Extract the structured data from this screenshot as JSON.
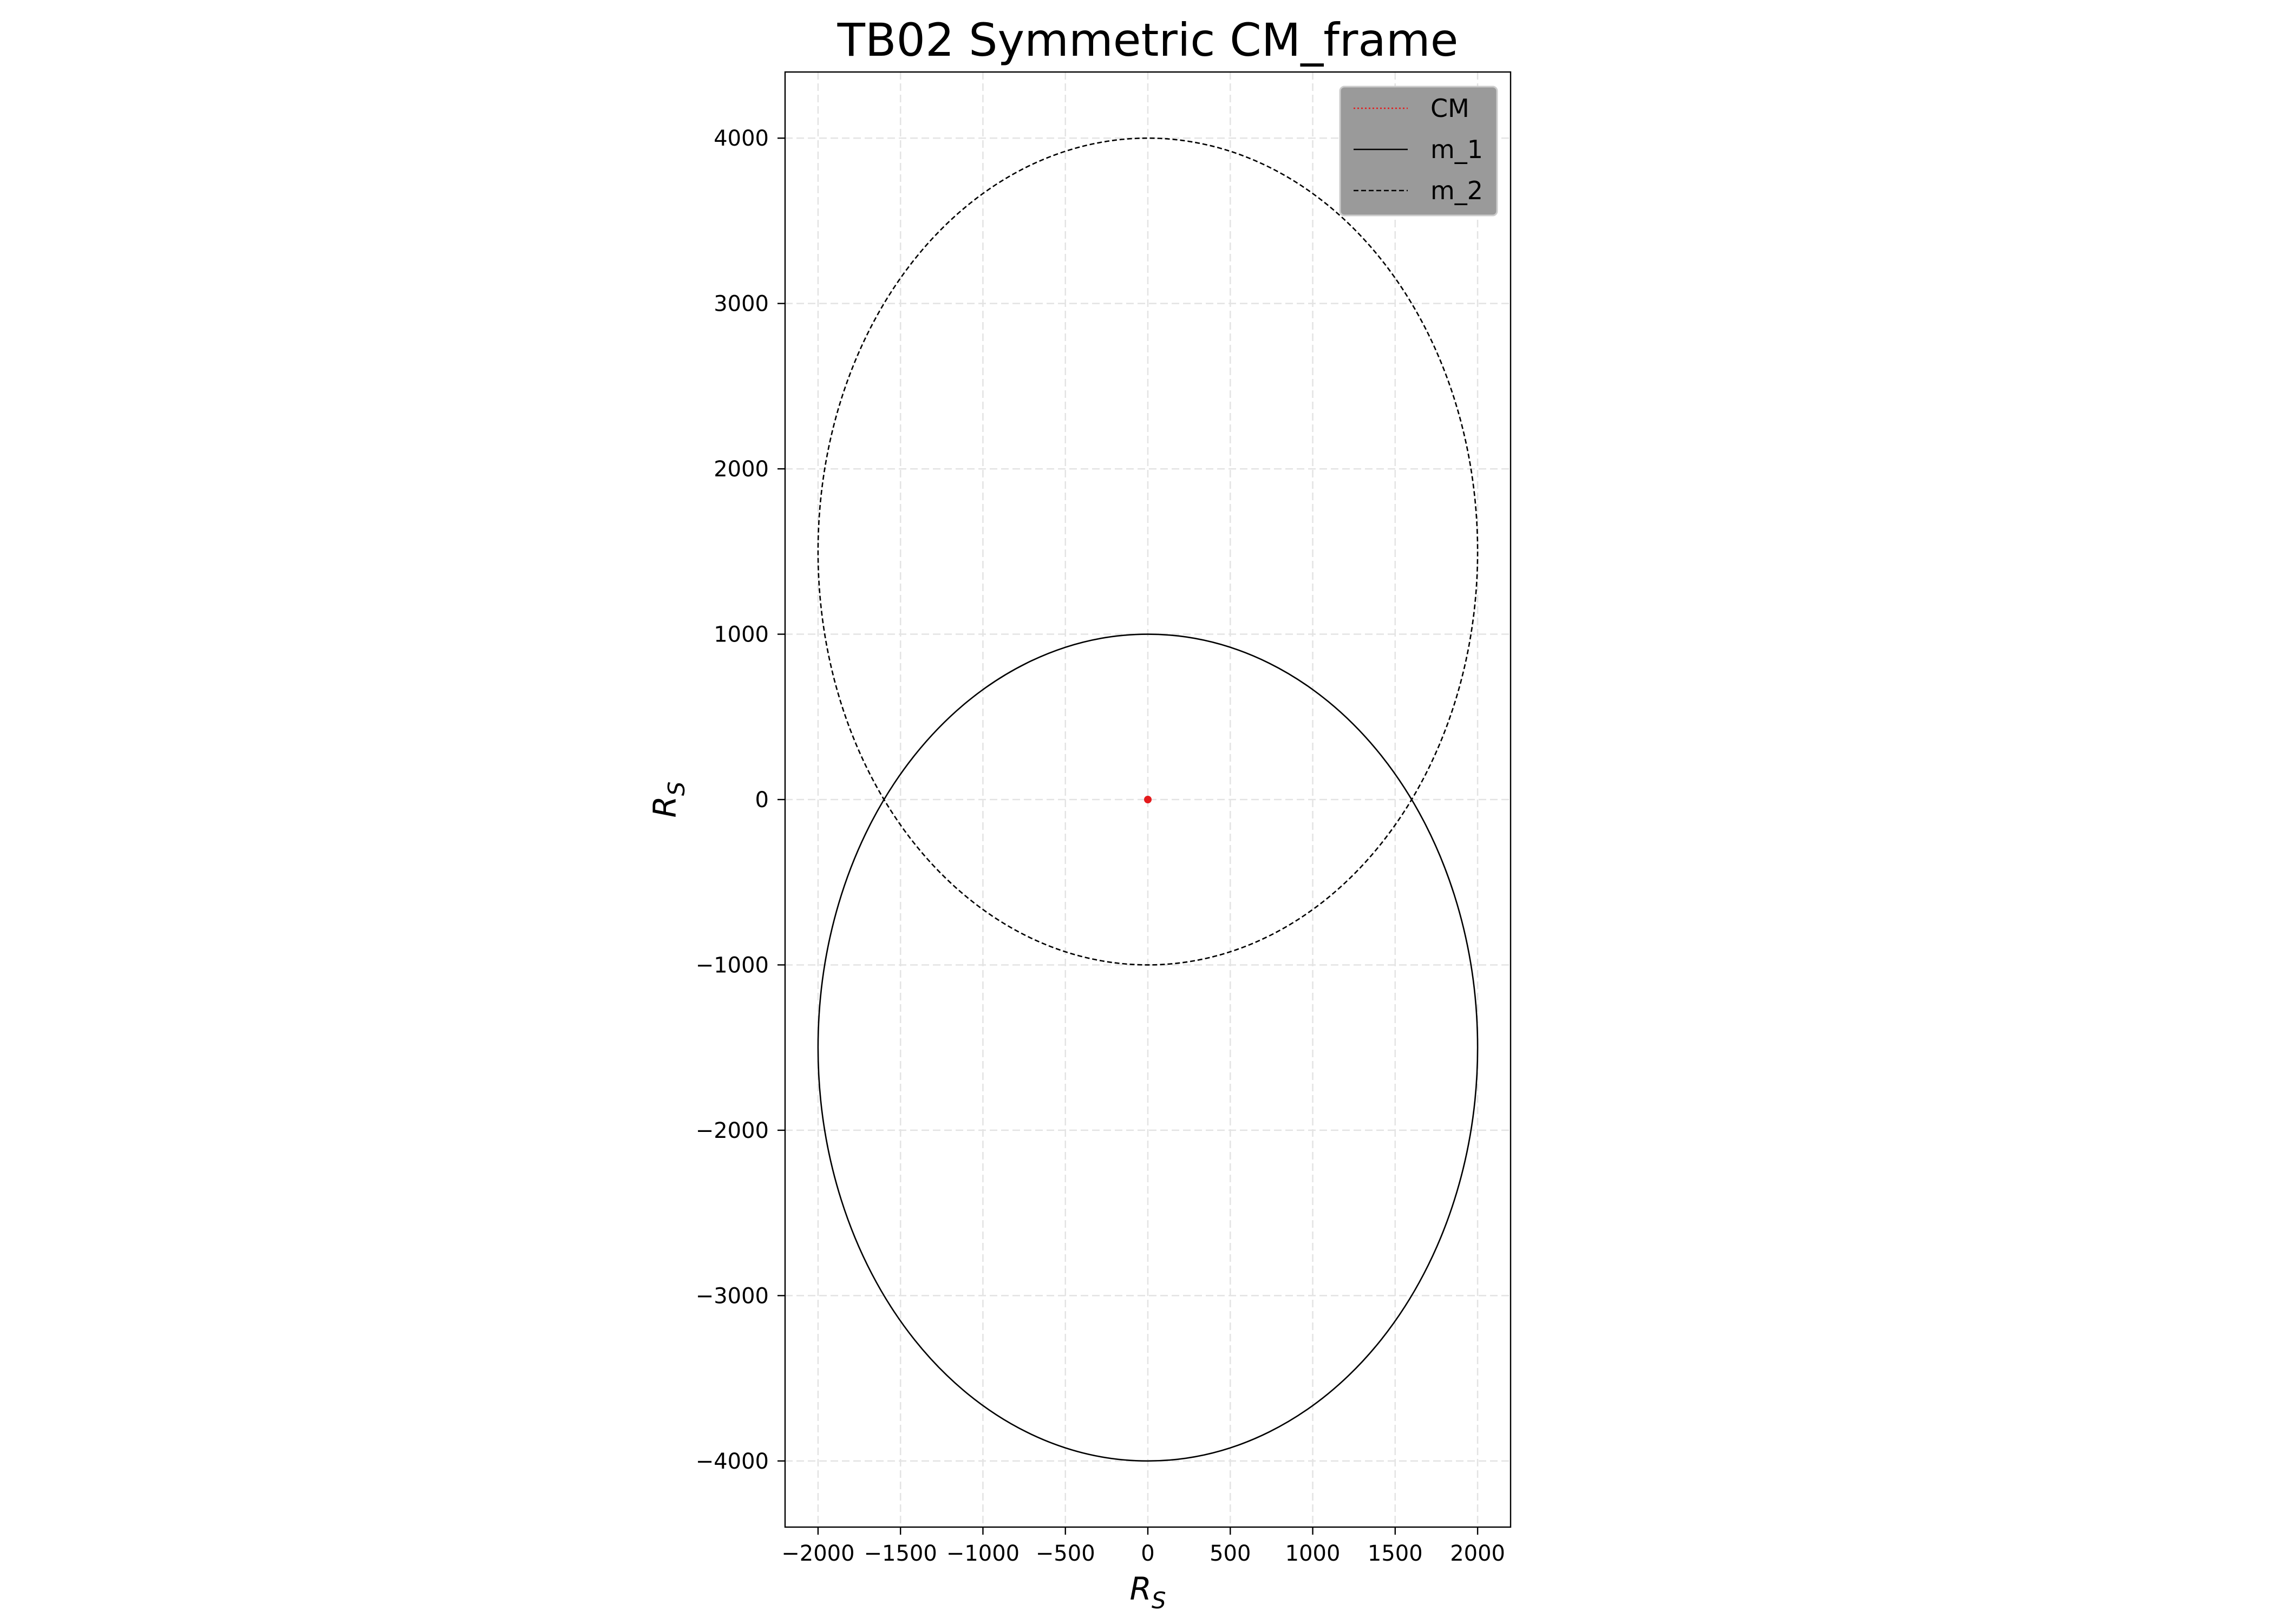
{
  "chart_data": {
    "type": "line",
    "title": "TB02 Symmetric CM_frame",
    "xlabel": "R",
    "ylabel": "R",
    "label_subscript": "S",
    "xlim": [
      -2200,
      2200
    ],
    "ylim": [
      -4400,
      4400
    ],
    "x_ticks": [
      -2000,
      -1500,
      -1000,
      -500,
      0,
      500,
      1000,
      1500,
      2000
    ],
    "x_tick_labels": [
      "−2000",
      "−1500",
      "−1000",
      "−500",
      "0",
      "500",
      "1000",
      "1500",
      "2000"
    ],
    "y_ticks": [
      -4000,
      -3000,
      -2000,
      -1000,
      0,
      1000,
      2000,
      3000,
      4000
    ],
    "y_tick_labels": [
      "−4000",
      "−3000",
      "−2000",
      "−1000",
      "0",
      "1000",
      "2000",
      "3000",
      "4000"
    ],
    "grid": true,
    "legend_position": "top-right",
    "series": [
      {
        "name": "CM",
        "style": "dotted",
        "color": "#e41a1c",
        "x": [
          0
        ],
        "y": [
          0
        ]
      },
      {
        "name": "m_1",
        "style": "solid",
        "color": "#000000",
        "ellipse": {
          "center": [
            0,
            -1500
          ],
          "semi_x": 2000,
          "semi_y": 2500
        },
        "x": [
          0,
          2000,
          0,
          -2000
        ],
        "y": [
          1000,
          -1500,
          -4000,
          -1500
        ]
      },
      {
        "name": "m_2",
        "style": "dashed",
        "color": "#000000",
        "ellipse": {
          "center": [
            0,
            1500
          ],
          "semi_x": 2000,
          "semi_y": 2500
        },
        "x": [
          0,
          2000,
          0,
          -2000
        ],
        "y": [
          4000,
          1500,
          -1000,
          1500
        ]
      }
    ]
  }
}
